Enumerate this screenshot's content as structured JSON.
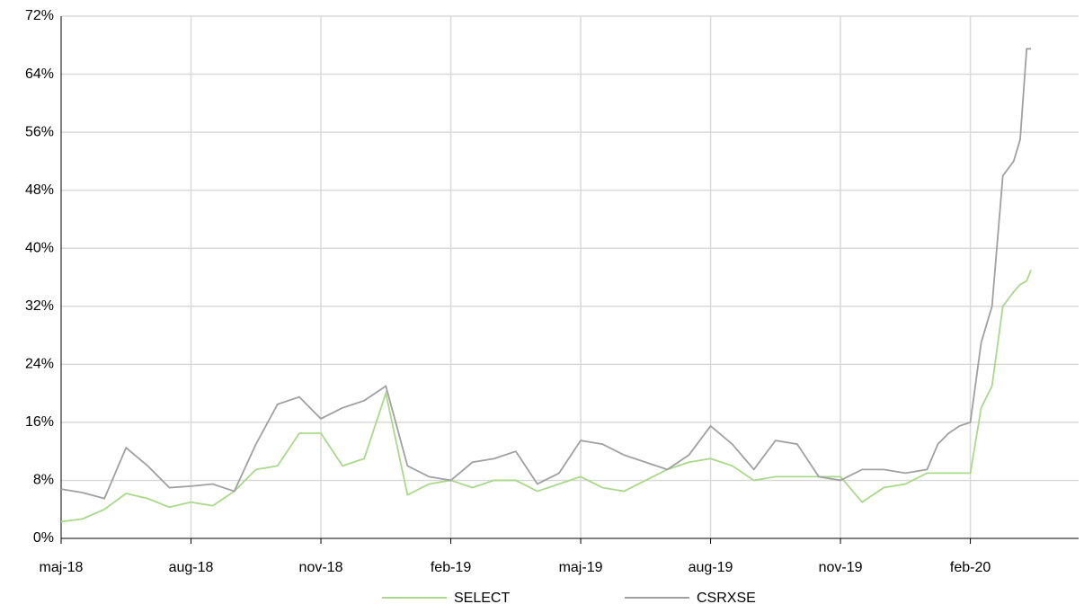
{
  "chart_data": {
    "type": "line",
    "x": [
      0,
      0.5,
      1,
      1.5,
      2,
      2.5,
      3,
      3.5,
      4,
      4.5,
      5,
      5.5,
      6,
      6.5,
      7,
      7.5,
      8,
      8.5,
      9,
      9.5,
      10,
      10.5,
      11,
      11.5,
      12,
      12.5,
      13,
      13.5,
      14,
      14.5,
      15,
      15.5,
      16,
      16.5,
      17,
      17.5,
      18,
      18.5,
      19,
      19.5,
      20,
      20.25,
      20.5,
      20.75,
      21,
      21.25,
      21.5,
      21.75,
      22,
      22.15,
      22.3,
      22.4
    ],
    "series": [
      {
        "name": "SELECT",
        "color": "#a9d98b",
        "values": [
          2.3,
          2.7,
          4,
          6.2,
          5.5,
          4.3,
          5,
          4.5,
          6.5,
          9.5,
          10,
          14.5,
          14.5,
          10,
          11,
          20,
          6,
          7.5,
          8,
          7,
          8,
          8,
          6.5,
          7.5,
          8.5,
          7,
          6.5,
          8,
          9.5,
          10.5,
          11,
          10,
          8,
          8.5,
          8.5,
          8.5,
          8.5,
          5,
          7,
          7.5,
          9,
          9,
          9,
          9,
          9,
          18,
          21,
          32,
          34,
          35,
          35.5,
          37
        ]
      },
      {
        "name": "CSRXSE",
        "color": "#a0a0a0",
        "values": [
          6.8,
          6.3,
          5.5,
          12.5,
          10,
          7,
          7.2,
          7.5,
          6.5,
          13,
          18.5,
          19.5,
          16.5,
          18,
          19,
          21,
          10,
          8.5,
          8,
          10.5,
          11,
          12,
          7.5,
          9,
          13.5,
          13,
          11.5,
          10.5,
          9.5,
          11.5,
          15.5,
          13,
          9.5,
          13.5,
          13,
          8.5,
          8,
          9.5,
          9.5,
          9,
          9.5,
          13,
          14.5,
          15.5,
          16,
          27,
          32,
          50,
          52,
          55,
          67.5,
          67.5
        ]
      }
    ],
    "xlim": [
      0,
      23.5
    ],
    "xticks": [
      {
        "value": 0,
        "label": "maj-18"
      },
      {
        "value": 3,
        "label": "aug-18"
      },
      {
        "value": 6,
        "label": "nov-18"
      },
      {
        "value": 9,
        "label": "feb-19"
      },
      {
        "value": 12,
        "label": "maj-19"
      },
      {
        "value": 15,
        "label": "aug-19"
      },
      {
        "value": 18,
        "label": "nov-19"
      },
      {
        "value": 21,
        "label": "feb-20"
      }
    ],
    "ylim": [
      0,
      72
    ],
    "yticks": [
      {
        "value": 0,
        "label": "0%"
      },
      {
        "value": 8,
        "label": "8%"
      },
      {
        "value": 16,
        "label": "16%"
      },
      {
        "value": 24,
        "label": "24%"
      },
      {
        "value": 32,
        "label": "32%"
      },
      {
        "value": 40,
        "label": "40%"
      },
      {
        "value": 48,
        "label": "48%"
      },
      {
        "value": 56,
        "label": "56%"
      },
      {
        "value": 64,
        "label": "64%"
      },
      {
        "value": 72,
        "label": "72%"
      }
    ],
    "grid": true,
    "legend": "bottom"
  }
}
